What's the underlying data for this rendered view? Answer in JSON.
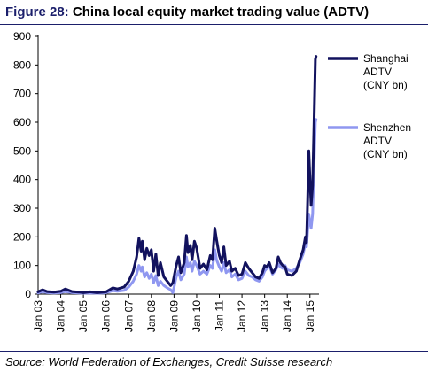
{
  "header": {
    "figure_label": "Figure 28:",
    "title": "China local equity market trading value (ADTV)"
  },
  "footer": {
    "source": "Source: World Federation of Exchanges, Credit Suisse research"
  },
  "legend": [
    {
      "lines": [
        "Shanghai",
        "ADTV",
        "(CNY bn)"
      ],
      "color": "#12125e"
    },
    {
      "lines": [
        "Shenzhen",
        "ADTV",
        "(CNY bn)"
      ],
      "color": "#8f97f0"
    }
  ],
  "chart_data": {
    "type": "line",
    "title": "China local equity market trading value (ADTV)",
    "ylim": [
      0,
      900
    ],
    "yticks": [
      0,
      100,
      200,
      300,
      400,
      500,
      600,
      700,
      800,
      900
    ],
    "xlim": [
      2003.0,
      2015.4
    ],
    "xticks": [
      {
        "label": "Jan 03",
        "x": 2003
      },
      {
        "label": "Jan 04",
        "x": 2004
      },
      {
        "label": "Jan 05",
        "x": 2005
      },
      {
        "label": "Jan 06",
        "x": 2006
      },
      {
        "label": "Jan 07",
        "x": 2007
      },
      {
        "label": "Jan 08",
        "x": 2008
      },
      {
        "label": "Jan 09",
        "x": 2009
      },
      {
        "label": "Jan 10",
        "x": 2010
      },
      {
        "label": "Jan 11",
        "x": 2011
      },
      {
        "label": "Jan 12",
        "x": 2012
      },
      {
        "label": "Jan 13",
        "x": 2013
      },
      {
        "label": "Jan 14",
        "x": 2014
      },
      {
        "label": "Jan 15",
        "x": 2015
      }
    ],
    "grid": false,
    "legend_position": "right",
    "series": [
      {
        "name": "Shanghai ADTV (CNY bn)",
        "color": "#12125e",
        "points": [
          [
            2003.0,
            8
          ],
          [
            2003.2,
            15
          ],
          [
            2003.4,
            9
          ],
          [
            2003.7,
            7
          ],
          [
            2004.0,
            10
          ],
          [
            2004.2,
            18
          ],
          [
            2004.5,
            9
          ],
          [
            2004.8,
            7
          ],
          [
            2005.0,
            5
          ],
          [
            2005.3,
            8
          ],
          [
            2005.6,
            5
          ],
          [
            2005.9,
            7
          ],
          [
            2006.0,
            8
          ],
          [
            2006.3,
            22
          ],
          [
            2006.5,
            18
          ],
          [
            2006.8,
            25
          ],
          [
            2007.0,
            45
          ],
          [
            2007.2,
            80
          ],
          [
            2007.35,
            130
          ],
          [
            2007.45,
            195
          ],
          [
            2007.55,
            150
          ],
          [
            2007.6,
            185
          ],
          [
            2007.7,
            120
          ],
          [
            2007.8,
            160
          ],
          [
            2007.9,
            135
          ],
          [
            2008.0,
            155
          ],
          [
            2008.1,
            80
          ],
          [
            2008.2,
            140
          ],
          [
            2008.3,
            65
          ],
          [
            2008.4,
            110
          ],
          [
            2008.55,
            60
          ],
          [
            2008.7,
            45
          ],
          [
            2008.85,
            30
          ],
          [
            2008.95,
            40
          ],
          [
            2009.1,
            100
          ],
          [
            2009.2,
            130
          ],
          [
            2009.3,
            75
          ],
          [
            2009.45,
            110
          ],
          [
            2009.55,
            205
          ],
          [
            2009.62,
            145
          ],
          [
            2009.72,
            170
          ],
          [
            2009.8,
            120
          ],
          [
            2009.9,
            185
          ],
          [
            2010.0,
            160
          ],
          [
            2010.15,
            90
          ],
          [
            2010.3,
            105
          ],
          [
            2010.45,
            85
          ],
          [
            2010.6,
            135
          ],
          [
            2010.7,
            120
          ],
          [
            2010.8,
            230
          ],
          [
            2010.88,
            190
          ],
          [
            2011.0,
            135
          ],
          [
            2011.1,
            110
          ],
          [
            2011.2,
            165
          ],
          [
            2011.3,
            100
          ],
          [
            2011.45,
            115
          ],
          [
            2011.55,
            80
          ],
          [
            2011.7,
            90
          ],
          [
            2011.85,
            65
          ],
          [
            2012.0,
            70
          ],
          [
            2012.15,
            110
          ],
          [
            2012.3,
            90
          ],
          [
            2012.45,
            75
          ],
          [
            2012.6,
            60
          ],
          [
            2012.75,
            55
          ],
          [
            2012.9,
            75
          ],
          [
            2013.0,
            100
          ],
          [
            2013.1,
            95
          ],
          [
            2013.2,
            110
          ],
          [
            2013.35,
            75
          ],
          [
            2013.5,
            90
          ],
          [
            2013.6,
            130
          ],
          [
            2013.7,
            110
          ],
          [
            2013.8,
            100
          ],
          [
            2013.9,
            95
          ],
          [
            2014.0,
            70
          ],
          [
            2014.2,
            65
          ],
          [
            2014.4,
            80
          ],
          [
            2014.55,
            120
          ],
          [
            2014.7,
            155
          ],
          [
            2014.8,
            200
          ],
          [
            2014.85,
            180
          ],
          [
            2014.9,
            330
          ],
          [
            2014.95,
            500
          ],
          [
            2015.0,
            400
          ],
          [
            2015.05,
            310
          ],
          [
            2015.12,
            380
          ],
          [
            2015.18,
            600
          ],
          [
            2015.24,
            820
          ],
          [
            2015.27,
            830
          ]
        ]
      },
      {
        "name": "Shenzhen ADTV (CNY bn)",
        "color": "#8f97f0",
        "points": [
          [
            2003.0,
            4
          ],
          [
            2003.2,
            8
          ],
          [
            2003.4,
            5
          ],
          [
            2003.7,
            4
          ],
          [
            2004.0,
            5
          ],
          [
            2004.2,
            9
          ],
          [
            2004.5,
            5
          ],
          [
            2004.8,
            4
          ],
          [
            2005.0,
            3
          ],
          [
            2005.3,
            4
          ],
          [
            2005.6,
            3
          ],
          [
            2005.9,
            4
          ],
          [
            2006.0,
            5
          ],
          [
            2006.3,
            12
          ],
          [
            2006.5,
            10
          ],
          [
            2006.8,
            13
          ],
          [
            2007.0,
            25
          ],
          [
            2007.2,
            45
          ],
          [
            2007.35,
            70
          ],
          [
            2007.45,
            100
          ],
          [
            2007.55,
            80
          ],
          [
            2007.6,
            95
          ],
          [
            2007.7,
            60
          ],
          [
            2007.8,
            75
          ],
          [
            2007.9,
            55
          ],
          [
            2008.0,
            70
          ],
          [
            2008.1,
            40
          ],
          [
            2008.2,
            65
          ],
          [
            2008.3,
            30
          ],
          [
            2008.4,
            45
          ],
          [
            2008.55,
            30
          ],
          [
            2008.7,
            22
          ],
          [
            2008.85,
            15
          ],
          [
            2008.95,
            5
          ],
          [
            2009.1,
            60
          ],
          [
            2009.2,
            80
          ],
          [
            2009.3,
            50
          ],
          [
            2009.45,
            70
          ],
          [
            2009.55,
            130
          ],
          [
            2009.62,
            95
          ],
          [
            2009.72,
            110
          ],
          [
            2009.8,
            80
          ],
          [
            2009.9,
            115
          ],
          [
            2010.0,
            100
          ],
          [
            2010.15,
            70
          ],
          [
            2010.3,
            80
          ],
          [
            2010.45,
            70
          ],
          [
            2010.6,
            100
          ],
          [
            2010.7,
            90
          ],
          [
            2010.8,
            155
          ],
          [
            2010.88,
            120
          ],
          [
            2011.0,
            95
          ],
          [
            2011.1,
            80
          ],
          [
            2011.2,
            110
          ],
          [
            2011.3,
            75
          ],
          [
            2011.45,
            85
          ],
          [
            2011.55,
            60
          ],
          [
            2011.7,
            70
          ],
          [
            2011.85,
            50
          ],
          [
            2012.0,
            55
          ],
          [
            2012.15,
            80
          ],
          [
            2012.3,
            65
          ],
          [
            2012.45,
            60
          ],
          [
            2012.6,
            50
          ],
          [
            2012.75,
            45
          ],
          [
            2012.9,
            60
          ],
          [
            2013.0,
            80
          ],
          [
            2013.1,
            90
          ],
          [
            2013.2,
            100
          ],
          [
            2013.35,
            70
          ],
          [
            2013.5,
            85
          ],
          [
            2013.6,
            105
          ],
          [
            2013.7,
            95
          ],
          [
            2013.8,
            90
          ],
          [
            2013.9,
            100
          ],
          [
            2014.0,
            85
          ],
          [
            2014.2,
            80
          ],
          [
            2014.4,
            90
          ],
          [
            2014.55,
            110
          ],
          [
            2014.7,
            140
          ],
          [
            2014.8,
            180
          ],
          [
            2014.85,
            165
          ],
          [
            2014.9,
            220
          ],
          [
            2014.95,
            280
          ],
          [
            2015.0,
            250
          ],
          [
            2015.05,
            230
          ],
          [
            2015.12,
            280
          ],
          [
            2015.18,
            450
          ],
          [
            2015.24,
            600
          ],
          [
            2015.27,
            610
          ]
        ]
      }
    ]
  }
}
